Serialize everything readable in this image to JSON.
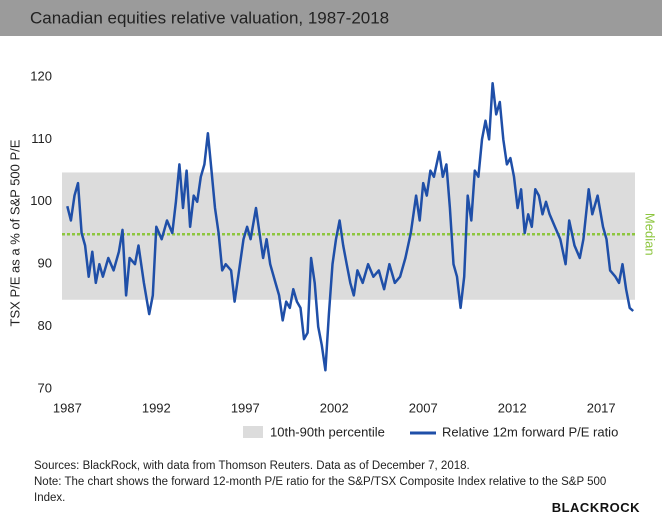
{
  "chart_data": {
    "type": "line",
    "title": "Canadian equities relative valuation, 1987-2018",
    "y_label": "TSX P/E as a % of S&P 500 P/E",
    "xlim": [
      1986.7,
      2018.9
    ],
    "xticks": [
      1987,
      1992,
      1997,
      2002,
      2007,
      2012,
      2017
    ],
    "ylim": [
      70,
      120
    ],
    "yticks": [
      70,
      80,
      90,
      100,
      110,
      120
    ],
    "grid": false,
    "band": {
      "name": "10th-90th percentile",
      "values": [
        84.3,
        104.7
      ],
      "color": "#dcdcdc"
    },
    "median": {
      "label": "Median",
      "value": 94.8,
      "color": "#8dc63f"
    },
    "x": [
      1987.0,
      1987.2,
      1987.4,
      1987.6,
      1987.8,
      1988.0,
      1988.2,
      1988.4,
      1988.6,
      1988.8,
      1989.0,
      1989.3,
      1989.6,
      1989.9,
      1990.1,
      1990.3,
      1990.5,
      1990.8,
      1991.0,
      1991.3,
      1991.6,
      1991.8,
      1992.0,
      1992.3,
      1992.6,
      1992.9,
      1993.1,
      1993.3,
      1993.5,
      1993.7,
      1993.9,
      1994.1,
      1994.3,
      1994.5,
      1994.7,
      1994.9,
      1995.1,
      1995.3,
      1995.5,
      1995.7,
      1995.9,
      1996.2,
      1996.4,
      1996.6,
      1996.9,
      1997.1,
      1997.3,
      1997.6,
      1997.8,
      1998.0,
      1998.2,
      1998.4,
      1998.7,
      1998.9,
      1999.1,
      1999.3,
      1999.5,
      1999.7,
      1999.9,
      2000.1,
      2000.3,
      2000.5,
      2000.7,
      2000.9,
      2001.1,
      2001.3,
      2001.5,
      2001.7,
      2001.9,
      2002.1,
      2002.3,
      2002.5,
      2002.7,
      2002.9,
      2003.1,
      2003.3,
      2003.6,
      2003.9,
      2004.2,
      2004.5,
      2004.8,
      2005.1,
      2005.4,
      2005.7,
      2006.0,
      2006.3,
      2006.6,
      2006.8,
      2007.0,
      2007.2,
      2007.4,
      2007.6,
      2007.9,
      2008.1,
      2008.3,
      2008.5,
      2008.7,
      2008.9,
      2009.1,
      2009.3,
      2009.5,
      2009.7,
      2009.9,
      2010.1,
      2010.3,
      2010.5,
      2010.7,
      2010.9,
      2011.1,
      2011.3,
      2011.5,
      2011.7,
      2011.9,
      2012.1,
      2012.3,
      2012.5,
      2012.7,
      2012.9,
      2013.1,
      2013.3,
      2013.5,
      2013.7,
      2013.9,
      2014.1,
      2014.4,
      2014.7,
      2015.0,
      2015.2,
      2015.5,
      2015.8,
      2016.0,
      2016.3,
      2016.5,
      2016.8,
      2017.1,
      2017.3,
      2017.5,
      2017.8,
      2018.0,
      2018.2,
      2018.4,
      2018.6,
      2018.8
    ],
    "series": [
      {
        "name": "Relative 12m forward P/E ratio",
        "color": "#1f4fa8",
        "values": [
          99.3,
          97,
          101,
          103,
          95,
          93,
          88,
          92,
          87,
          90,
          88,
          91,
          89,
          92,
          95.5,
          85,
          91,
          90,
          93,
          87,
          82,
          85,
          96,
          94,
          97,
          95,
          100,
          106,
          99,
          105,
          96,
          101,
          100,
          104,
          106,
          111,
          105,
          99,
          95,
          89,
          90,
          89,
          84,
          88,
          94,
          96,
          94,
          99,
          95,
          91,
          94,
          90,
          87,
          85,
          81,
          84,
          83,
          86,
          84,
          83,
          78,
          79,
          91,
          87,
          80,
          77,
          73,
          82,
          90,
          94,
          97,
          93,
          90,
          87,
          85,
          89,
          87,
          90,
          88,
          89,
          86,
          90,
          87,
          88,
          91,
          95,
          101,
          97,
          103,
          101,
          105,
          104,
          108,
          104,
          106,
          99,
          90,
          88,
          83,
          88,
          101,
          97,
          105,
          104,
          110,
          113,
          110,
          119,
          114,
          116,
          110,
          106,
          107,
          104,
          99,
          102,
          95,
          98,
          96,
          102,
          101,
          98,
          100,
          98,
          96,
          94,
          90,
          97,
          93,
          91,
          94,
          102,
          98,
          101,
          96,
          94,
          89,
          88,
          87,
          90,
          86,
          83,
          82.5
        ]
      }
    ],
    "sources": "Sources: BlackRock, with data from Thomson Reuters. Data as of December 7, 2018.",
    "note": "Note: The chart shows the forward 12-month P/E ratio for the S&P/TSX Composite Index relative to the S&P 500 Index.",
    "logo": "BlackRock"
  }
}
